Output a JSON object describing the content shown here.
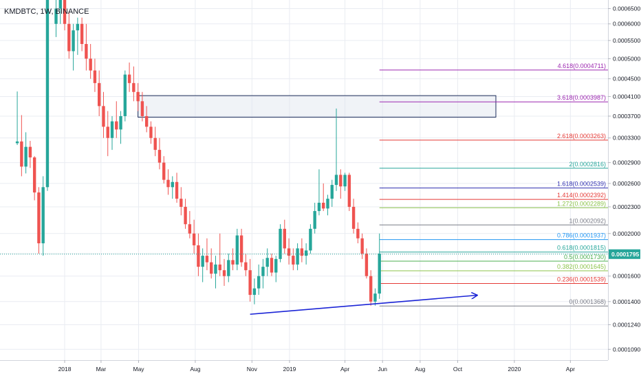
{
  "header": {
    "title": "KMDBTC, 1W, BINANCE"
  },
  "colors": {
    "up": "#26a69a",
    "down": "#ef5350",
    "grid": "#e9ecf2",
    "axis_text": "#131722",
    "price_badge": "#26a69a",
    "trendline": "#1a23d6",
    "box_border": "#1b2c5a",
    "box_fill": "#dde4ee"
  },
  "current_price": {
    "label": "0.0001795",
    "value": 0.0001795
  },
  "chart_data": {
    "type": "candlestick",
    "title": "KMDBTC, 1W, BINANCE",
    "y_scale": "log",
    "ylim": [
      0.000103,
      0.00068
    ],
    "xlim": [
      "2017-09-18",
      "2020-06-01"
    ],
    "y_ticks": [
      "0.0006500",
      "0.0006000",
      "0.0005500",
      "0.0005000",
      "0.0004500",
      "0.0004100",
      "0.0003700",
      "0.0003300",
      "0.0002900",
      "0.0002600",
      "0.0002300",
      "0.0002000",
      "0.0001800",
      "0.0001600",
      "0.0001400",
      "0.0001240",
      "0.0001090"
    ],
    "x_ticks": [
      {
        "label": "2018",
        "date": "2018-01-01"
      },
      {
        "label": "Mar",
        "date": "2018-03-01"
      },
      {
        "label": "May",
        "date": "2018-05-01"
      },
      {
        "label": "Aug",
        "date": "2018-08-01"
      },
      {
        "label": "Nov",
        "date": "2018-11-01"
      },
      {
        "label": "2019",
        "date": "2019-01-01"
      },
      {
        "label": "Apr",
        "date": "2019-04-01"
      },
      {
        "label": "Jun",
        "date": "2019-06-01"
      },
      {
        "label": "Aug",
        "date": "2019-08-01"
      },
      {
        "label": "Oct",
        "date": "2019-10-01"
      },
      {
        "label": "2020",
        "date": "2020-01-01"
      },
      {
        "label": "Apr",
        "date": "2020-04-01"
      }
    ],
    "candles": [
      {
        "date": "2017-10-16",
        "o": 0.000321,
        "h": 0.000421,
        "l": 0.000318,
        "c": 0.000324
      },
      {
        "date": "2017-10-23",
        "o": 0.000324,
        "h": 0.000372,
        "l": 0.00027,
        "c": 0.000284
      },
      {
        "date": "2017-10-30",
        "o": 0.000284,
        "h": 0.00034,
        "l": 0.000274,
        "c": 0.000315
      },
      {
        "date": "2017-11-06",
        "o": 0.000315,
        "h": 0.000325,
        "l": 0.000282,
        "c": 0.000298
      },
      {
        "date": "2017-11-13",
        "o": 0.000298,
        "h": 0.0003,
        "l": 0.000238,
        "c": 0.000248
      },
      {
        "date": "2017-11-20",
        "o": 0.000248,
        "h": 0.000255,
        "l": 0.00018,
        "c": 0.00019
      },
      {
        "date": "2017-11-27",
        "o": 0.00019,
        "h": 0.00027,
        "l": 0.000178,
        "c": 0.000255
      },
      {
        "date": "2017-12-04",
        "o": 0.000255,
        "h": 0.0007,
        "l": 0.00025,
        "c": 0.0007
      },
      {
        "date": "2017-12-18",
        "o": 0.0006,
        "h": 0.00069,
        "l": 0.00056,
        "c": 0.00065
      },
      {
        "date": "2017-12-25",
        "o": 0.00065,
        "h": 0.000695,
        "l": 0.0006,
        "c": 0.00069
      },
      {
        "date": "2018-01-01",
        "o": 0.00069,
        "h": 0.0007,
        "l": 0.00058,
        "c": 0.0006
      },
      {
        "date": "2018-01-08",
        "o": 0.0006,
        "h": 0.00064,
        "l": 0.0005,
        "c": 0.00052
      },
      {
        "date": "2018-01-15",
        "o": 0.00052,
        "h": 0.0006,
        "l": 0.00047,
        "c": 0.00058
      },
      {
        "date": "2018-01-22",
        "o": 0.00058,
        "h": 0.00062,
        "l": 0.00051,
        "c": 0.0006
      },
      {
        "date": "2018-01-29",
        "o": 0.0006,
        "h": 0.00062,
        "l": 0.00052,
        "c": 0.00054
      },
      {
        "date": "2018-02-05",
        "o": 0.00054,
        "h": 0.0006,
        "l": 0.00047,
        "c": 0.0005
      },
      {
        "date": "2018-02-12",
        "o": 0.0005,
        "h": 0.00054,
        "l": 0.00045,
        "c": 0.00047
      },
      {
        "date": "2018-02-19",
        "o": 0.00047,
        "h": 0.0005,
        "l": 0.00042,
        "c": 0.00044
      },
      {
        "date": "2018-02-26",
        "o": 0.00044,
        "h": 0.00047,
        "l": 0.00037,
        "c": 0.00039
      },
      {
        "date": "2018-03-05",
        "o": 0.00039,
        "h": 0.00042,
        "l": 0.00033,
        "c": 0.00035
      },
      {
        "date": "2018-03-12",
        "o": 0.00035,
        "h": 0.00038,
        "l": 0.0003,
        "c": 0.00033
      },
      {
        "date": "2018-03-19",
        "o": 0.00033,
        "h": 0.00037,
        "l": 0.00031,
        "c": 0.00036
      },
      {
        "date": "2018-03-26",
        "o": 0.00036,
        "h": 0.0004,
        "l": 0.00033,
        "c": 0.000345
      },
      {
        "date": "2018-04-02",
        "o": 0.000345,
        "h": 0.00038,
        "l": 0.00032,
        "c": 0.00037
      },
      {
        "date": "2018-04-09",
        "o": 0.00037,
        "h": 0.00047,
        "l": 0.00036,
        "c": 0.00046
      },
      {
        "date": "2018-04-16",
        "o": 0.00046,
        "h": 0.00049,
        "l": 0.00042,
        "c": 0.00044
      },
      {
        "date": "2018-04-23",
        "o": 0.00044,
        "h": 0.00048,
        "l": 0.0004,
        "c": 0.00042
      },
      {
        "date": "2018-04-30",
        "o": 0.00042,
        "h": 0.00044,
        "l": 0.00038,
        "c": 0.0004
      },
      {
        "date": "2018-05-07",
        "o": 0.0004,
        "h": 0.00042,
        "l": 0.00036,
        "c": 0.00037
      },
      {
        "date": "2018-05-14",
        "o": 0.00037,
        "h": 0.00039,
        "l": 0.00034,
        "c": 0.00035
      },
      {
        "date": "2018-05-21",
        "o": 0.00035,
        "h": 0.00036,
        "l": 0.00032,
        "c": 0.00033
      },
      {
        "date": "2018-05-28",
        "o": 0.00033,
        "h": 0.00035,
        "l": 0.0003,
        "c": 0.00031
      },
      {
        "date": "2018-06-04",
        "o": 0.00031,
        "h": 0.00033,
        "l": 0.00028,
        "c": 0.00029
      },
      {
        "date": "2018-06-11",
        "o": 0.00029,
        "h": 0.0003,
        "l": 0.00026,
        "c": 0.000265
      },
      {
        "date": "2018-06-18",
        "o": 0.000265,
        "h": 0.00028,
        "l": 0.000245,
        "c": 0.000255
      },
      {
        "date": "2018-06-25",
        "o": 0.000255,
        "h": 0.00027,
        "l": 0.00024,
        "c": 0.000262
      },
      {
        "date": "2018-07-02",
        "o": 0.000262,
        "h": 0.000275,
        "l": 0.000235,
        "c": 0.00024
      },
      {
        "date": "2018-07-09",
        "o": 0.00024,
        "h": 0.000255,
        "l": 0.00022,
        "c": 0.00023
      },
      {
        "date": "2018-07-16",
        "o": 0.00023,
        "h": 0.00024,
        "l": 0.000205,
        "c": 0.00021
      },
      {
        "date": "2018-07-23",
        "o": 0.00021,
        "h": 0.000225,
        "l": 0.000195,
        "c": 0.0002
      },
      {
        "date": "2018-07-30",
        "o": 0.0002,
        "h": 0.000215,
        "l": 0.00018,
        "c": 0.000188
      },
      {
        "date": "2018-08-06",
        "o": 0.000188,
        "h": 0.0002,
        "l": 0.00016,
        "c": 0.000168
      },
      {
        "date": "2018-08-13",
        "o": 0.000168,
        "h": 0.000185,
        "l": 0.000155,
        "c": 0.000178
      },
      {
        "date": "2018-08-20",
        "o": 0.000178,
        "h": 0.000195,
        "l": 0.000165,
        "c": 0.000172
      },
      {
        "date": "2018-08-27",
        "o": 0.000172,
        "h": 0.000185,
        "l": 0.000158,
        "c": 0.000162
      },
      {
        "date": "2018-09-03",
        "o": 0.000162,
        "h": 0.000178,
        "l": 0.00015,
        "c": 0.00017
      },
      {
        "date": "2018-09-10",
        "o": 0.00017,
        "h": 0.0002,
        "l": 0.00016,
        "c": 0.000165
      },
      {
        "date": "2018-09-17",
        "o": 0.000165,
        "h": 0.000175,
        "l": 0.000152,
        "c": 0.00016
      },
      {
        "date": "2018-09-24",
        "o": 0.00016,
        "h": 0.00018,
        "l": 0.000155,
        "c": 0.000174
      },
      {
        "date": "2018-10-01",
        "o": 0.000174,
        "h": 0.000185,
        "l": 0.000165,
        "c": 0.00017
      },
      {
        "date": "2018-10-08",
        "o": 0.00017,
        "h": 0.000205,
        "l": 0.000165,
        "c": 0.000198
      },
      {
        "date": "2018-10-15",
        "o": 0.000198,
        "h": 0.000205,
        "l": 0.000168,
        "c": 0.000172
      },
      {
        "date": "2018-10-22",
        "o": 0.000172,
        "h": 0.00018,
        "l": 0.00016,
        "c": 0.000165
      },
      {
        "date": "2018-10-29",
        "o": 0.000165,
        "h": 0.000175,
        "l": 0.00014,
        "c": 0.000145
      },
      {
        "date": "2018-11-05",
        "o": 0.000145,
        "h": 0.000158,
        "l": 0.000138,
        "c": 0.00015
      },
      {
        "date": "2018-11-12",
        "o": 0.00015,
        "h": 0.00017,
        "l": 0.000145,
        "c": 0.00016
      },
      {
        "date": "2018-11-19",
        "o": 0.00016,
        "h": 0.000175,
        "l": 0.00015,
        "c": 0.000168
      },
      {
        "date": "2018-11-26",
        "o": 0.000168,
        "h": 0.000185,
        "l": 0.00016,
        "c": 0.000176
      },
      {
        "date": "2018-12-03",
        "o": 0.000176,
        "h": 0.00018,
        "l": 0.00016,
        "c": 0.000163
      },
      {
        "date": "2018-12-10",
        "o": 0.000163,
        "h": 0.000178,
        "l": 0.000155,
        "c": 0.000175
      },
      {
        "date": "2018-12-17",
        "o": 0.000175,
        "h": 0.00021,
        "l": 0.000172,
        "c": 0.000205
      },
      {
        "date": "2018-12-24",
        "o": 0.000205,
        "h": 0.000215,
        "l": 0.00018,
        "c": 0.000185
      },
      {
        "date": "2018-12-31",
        "o": 0.000185,
        "h": 0.000195,
        "l": 0.00017,
        "c": 0.000178
      },
      {
        "date": "2019-01-07",
        "o": 0.000178,
        "h": 0.000185,
        "l": 0.000165,
        "c": 0.00017
      },
      {
        "date": "2019-01-14",
        "o": 0.00017,
        "h": 0.00019,
        "l": 0.000165,
        "c": 0.000185
      },
      {
        "date": "2019-01-21",
        "o": 0.000185,
        "h": 0.000195,
        "l": 0.000172,
        "c": 0.000178
      },
      {
        "date": "2019-01-28",
        "o": 0.000178,
        "h": 0.00019,
        "l": 0.00017,
        "c": 0.000183
      },
      {
        "date": "2019-02-04",
        "o": 0.000183,
        "h": 0.00021,
        "l": 0.00018,
        "c": 0.000205
      },
      {
        "date": "2019-02-11",
        "o": 0.000205,
        "h": 0.000235,
        "l": 0.0002,
        "c": 0.000225
      },
      {
        "date": "2019-02-18",
        "o": 0.000225,
        "h": 0.00028,
        "l": 0.00022,
        "c": 0.000235
      },
      {
        "date": "2019-02-25",
        "o": 0.000235,
        "h": 0.00026,
        "l": 0.000225,
        "c": 0.000228
      },
      {
        "date": "2019-03-04",
        "o": 0.000228,
        "h": 0.000245,
        "l": 0.00022,
        "c": 0.00024
      },
      {
        "date": "2019-03-11",
        "o": 0.00024,
        "h": 0.000265,
        "l": 0.00023,
        "c": 0.000258
      },
      {
        "date": "2019-03-18",
        "o": 0.000258,
        "h": 0.000385,
        "l": 0.00025,
        "c": 0.000272
      },
      {
        "date": "2019-03-25",
        "o": 0.000272,
        "h": 0.00028,
        "l": 0.00024,
        "c": 0.000256
      },
      {
        "date": "2019-04-01",
        "o": 0.000256,
        "h": 0.000275,
        "l": 0.00025,
        "c": 0.000272
      },
      {
        "date": "2019-04-08",
        "o": 0.000272,
        "h": 0.000275,
        "l": 0.000225,
        "c": 0.00023
      },
      {
        "date": "2019-04-15",
        "o": 0.00023,
        "h": 0.00024,
        "l": 0.0002,
        "c": 0.000205
      },
      {
        "date": "2019-04-22",
        "o": 0.000205,
        "h": 0.000212,
        "l": 0.00019,
        "c": 0.000195
      },
      {
        "date": "2019-04-29",
        "o": 0.000195,
        "h": 0.0002,
        "l": 0.000175,
        "c": 0.00018
      },
      {
        "date": "2019-05-06",
        "o": 0.00018,
        "h": 0.000185,
        "l": 0.000158,
        "c": 0.00016
      },
      {
        "date": "2019-05-13",
        "o": 0.00016,
        "h": 0.000165,
        "l": 0.000137,
        "c": 0.00014
      },
      {
        "date": "2019-05-20",
        "o": 0.00014,
        "h": 0.00015,
        "l": 0.000137,
        "c": 0.000146
      },
      {
        "date": "2019-05-27",
        "o": 0.000146,
        "h": 0.0002,
        "l": 0.000142,
        "c": 0.00018
      }
    ],
    "fib_levels": [
      {
        "ratio": "4.618",
        "value": 0.0004711,
        "label": "4.618(0.0004711)",
        "color": "#9c27b0"
      },
      {
        "ratio": "3.618",
        "value": 0.0003987,
        "label": "3.618(0.0003987)",
        "color": "#9c27b0"
      },
      {
        "ratio": "2.618",
        "value": 0.0003263,
        "label": "2.618(0.0003263)",
        "color": "#e53935"
      },
      {
        "ratio": "2",
        "value": 0.0002816,
        "label": "2(0.0002816)",
        "color": "#26a69a"
      },
      {
        "ratio": "1.618",
        "value": 0.0002539,
        "label": "1.618(0.0002539)",
        "color": "#3030b0"
      },
      {
        "ratio": "1.414",
        "value": 0.0002392,
        "label": "1.414(0.0002392)",
        "color": "#e53935"
      },
      {
        "ratio": "1.272",
        "value": 0.0002289,
        "label": "1.272(0.0002289)",
        "color": "#8bc34a"
      },
      {
        "ratio": "1",
        "value": 0.0002092,
        "label": "1(0.0002092)",
        "color": "#787b86"
      },
      {
        "ratio": "0.786",
        "value": 0.0001937,
        "label": "0.786(0.0001937)",
        "color": "#2196f3"
      },
      {
        "ratio": "0.618",
        "value": 0.0001815,
        "label": "0.618(0.0001815)",
        "color": "#26a69a"
      },
      {
        "ratio": "0.5",
        "value": 0.000173,
        "label": "0.5(0.0001730)",
        "color": "#4caf50"
      },
      {
        "ratio": "0.382",
        "value": 0.0001645,
        "label": "0.382(0.0001645)",
        "color": "#8bc34a"
      },
      {
        "ratio": "0.236",
        "value": 0.0001539,
        "label": "0.236(0.0001539)",
        "color": "#e53935"
      },
      {
        "ratio": "0",
        "value": 0.0001368,
        "label": "0(0.0001368)",
        "color": "#787b86"
      }
    ],
    "fib_start_date": "2019-05-27",
    "fib_end_date": "2020-06-01",
    "supply_zone": {
      "from": "2018-04-30",
      "to": "2019-12-02",
      "top": 0.000412,
      "bottom": 0.000368
    },
    "trendline": {
      "from": {
        "date": "2018-10-29",
        "value": 0.000131
      },
      "to": {
        "date": "2019-11-01",
        "value": 0.0001447
      }
    },
    "current_price_line": 0.0001795
  }
}
